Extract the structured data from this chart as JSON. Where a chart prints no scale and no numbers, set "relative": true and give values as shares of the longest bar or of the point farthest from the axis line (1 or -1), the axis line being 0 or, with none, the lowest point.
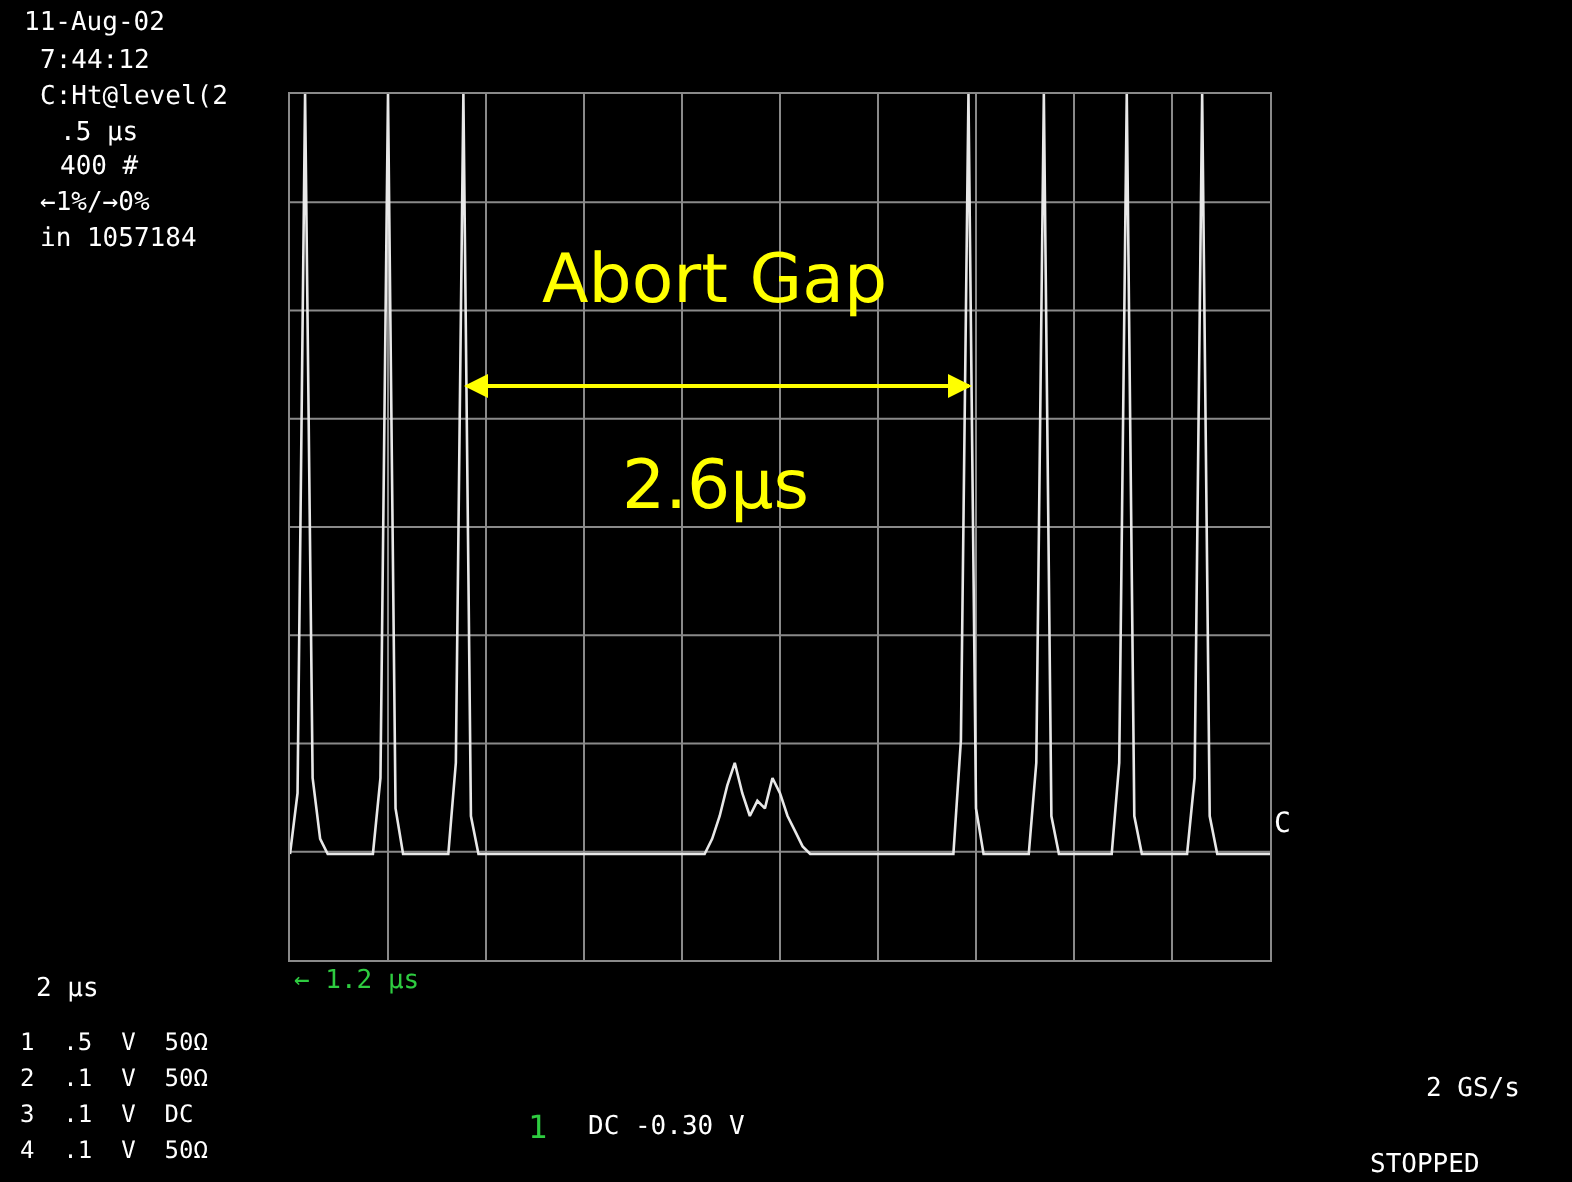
{
  "chart_data": {
    "type": "line",
    "relative": true,
    "grid": true,
    "marker": "none",
    "line_style": "solid",
    "categories": [
      null,
      null,
      null,
      null,
      null,
      null,
      null,
      null,
      null,
      null,
      null,
      null,
      null,
      null,
      null,
      null,
      null,
      null,
      null,
      null,
      null,
      null,
      null,
      null,
      null,
      null,
      null,
      null,
      null,
      null,
      null,
      null,
      null,
      null,
      null,
      null,
      null,
      null,
      null,
      null,
      null,
      null,
      null,
      null,
      null,
      null,
      null,
      null,
      null,
      null,
      null,
      null,
      null,
      null,
      null,
      null,
      null,
      null,
      null,
      null,
      null,
      null,
      null,
      null,
      null,
      null,
      null,
      null,
      null,
      null,
      null,
      null,
      null,
      null,
      null,
      null,
      null,
      null,
      null,
      null,
      null,
      null,
      null,
      null,
      null,
      null,
      null,
      null,
      null,
      null,
      null,
      null,
      null,
      null,
      null,
      null,
      null,
      null,
      null,
      null,
      null,
      null,
      null,
      null,
      null,
      null,
      null,
      null,
      null,
      null,
      null,
      null,
      null,
      null,
      null,
      null,
      null,
      null,
      null,
      null,
      null,
      null,
      null,
      null,
      null,
      null,
      null,
      null,
      null,
      null,
      null
    ],
    "series": [
      {
        "color": "#e8e8e8",
        "values": [
          0,
          0.08,
          1,
          0.1,
          0.02,
          0,
          0,
          0,
          0,
          0,
          0,
          0,
          0.1,
          1,
          0.06,
          0,
          0,
          0,
          0,
          0,
          0,
          0,
          0.12,
          1,
          0.05,
          0,
          0,
          0,
          0,
          0,
          0,
          0,
          0,
          0,
          0,
          0,
          0,
          0,
          0,
          0,
          0,
          0,
          0,
          0,
          0,
          0,
          0,
          0,
          0,
          0,
          0,
          0,
          0,
          0,
          0,
          0,
          0.02,
          0.05,
          0.09,
          0.12,
          0.08,
          0.05,
          0.07,
          0.06,
          0.1,
          0.08,
          0.05,
          0.03,
          0.01,
          0,
          0,
          0,
          0,
          0,
          0,
          0,
          0,
          0,
          0,
          0,
          0,
          0,
          0,
          0,
          0,
          0,
          0,
          0,
          0,
          0.15,
          1,
          0.06,
          0,
          0,
          0,
          0,
          0,
          0,
          0,
          0.12,
          1,
          0.05,
          0,
          0,
          0,
          0,
          0,
          0,
          0,
          0,
          0.12,
          1,
          0.05,
          0,
          0,
          0,
          0,
          0,
          0,
          0,
          0.1,
          1,
          0.05,
          0,
          0,
          0,
          0,
          0,
          0,
          0,
          0
        ]
      }
    ],
    "annotations": [
      "11-Aug-02",
      "7:44:12",
      "C:Ht@level(2",
      ".5 µs",
      "400 #",
      "←1%/→0%",
      "in 1057184",
      "2 µs",
      "1  .5  V  50Ω",
      "2  .1  V  50Ω",
      "3  .1  V  DC",
      "4  .1  V  50Ω",
      "← 1.2 µs",
      "1",
      "DC -0.30 V",
      "2 GS/s",
      "STOPPED",
      "C",
      "Abort Gap",
      "2.6µs"
    ]
  }
}
